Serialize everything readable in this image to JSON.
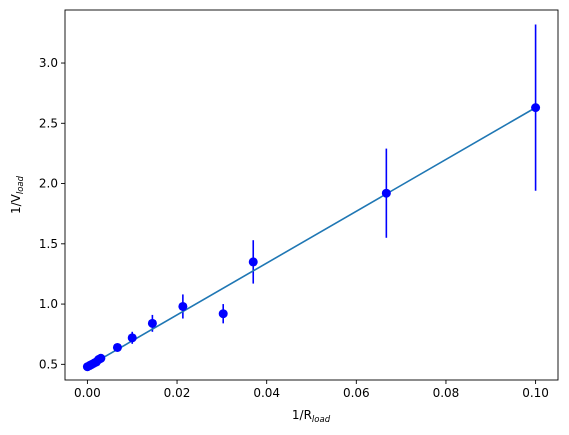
{
  "chart_data": {
    "type": "scatter",
    "xlabel_main": "1/R",
    "xlabel_sub": "load",
    "ylabel_main": "1/V",
    "ylabel_sub": "load",
    "xlim": [
      -0.005,
      0.105
    ],
    "ylim": [
      0.37,
      3.44
    ],
    "x_ticks": [
      0.0,
      0.02,
      0.04,
      0.06,
      0.08,
      0.1
    ],
    "x_tick_labels": [
      "0.00",
      "0.02",
      "0.04",
      "0.06",
      "0.08",
      "0.10"
    ],
    "y_ticks": [
      0.5,
      1.0,
      1.5,
      2.0,
      2.5,
      3.0
    ],
    "y_tick_labels": [
      "0.5",
      "1.0",
      "1.5",
      "2.0",
      "2.5",
      "3.0"
    ],
    "grid": false,
    "series": [
      {
        "kind": "errorbar",
        "color": "#0000ff",
        "points": [
          {
            "x": 0.0,
            "y": 0.48,
            "err": 0.0
          },
          {
            "x": 0.0005,
            "y": 0.49,
            "err": 0.0
          },
          {
            "x": 0.001,
            "y": 0.5,
            "err": 0.0
          },
          {
            "x": 0.0015,
            "y": 0.51,
            "err": 0.0
          },
          {
            "x": 0.002,
            "y": 0.52,
            "err": 0.0
          },
          {
            "x": 0.0025,
            "y": 0.54,
            "err": 0.0
          },
          {
            "x": 0.003,
            "y": 0.55,
            "err": 0.0
          },
          {
            "x": 0.0067,
            "y": 0.64,
            "err": 0.03
          },
          {
            "x": 0.01,
            "y": 0.72,
            "err": 0.05
          },
          {
            "x": 0.0145,
            "y": 0.84,
            "err": 0.07
          },
          {
            "x": 0.0213,
            "y": 0.98,
            "err": 0.1
          },
          {
            "x": 0.0303,
            "y": 0.92,
            "err": 0.08
          },
          {
            "x": 0.037,
            "y": 1.35,
            "err": 0.18
          },
          {
            "x": 0.0667,
            "y": 1.92,
            "err": 0.37
          },
          {
            "x": 0.1,
            "y": 2.63,
            "err": 0.69
          }
        ]
      },
      {
        "kind": "line",
        "color": "#1f77b4",
        "x": [
          0.0,
          0.1
        ],
        "y": [
          0.48,
          2.63
        ]
      }
    ]
  }
}
